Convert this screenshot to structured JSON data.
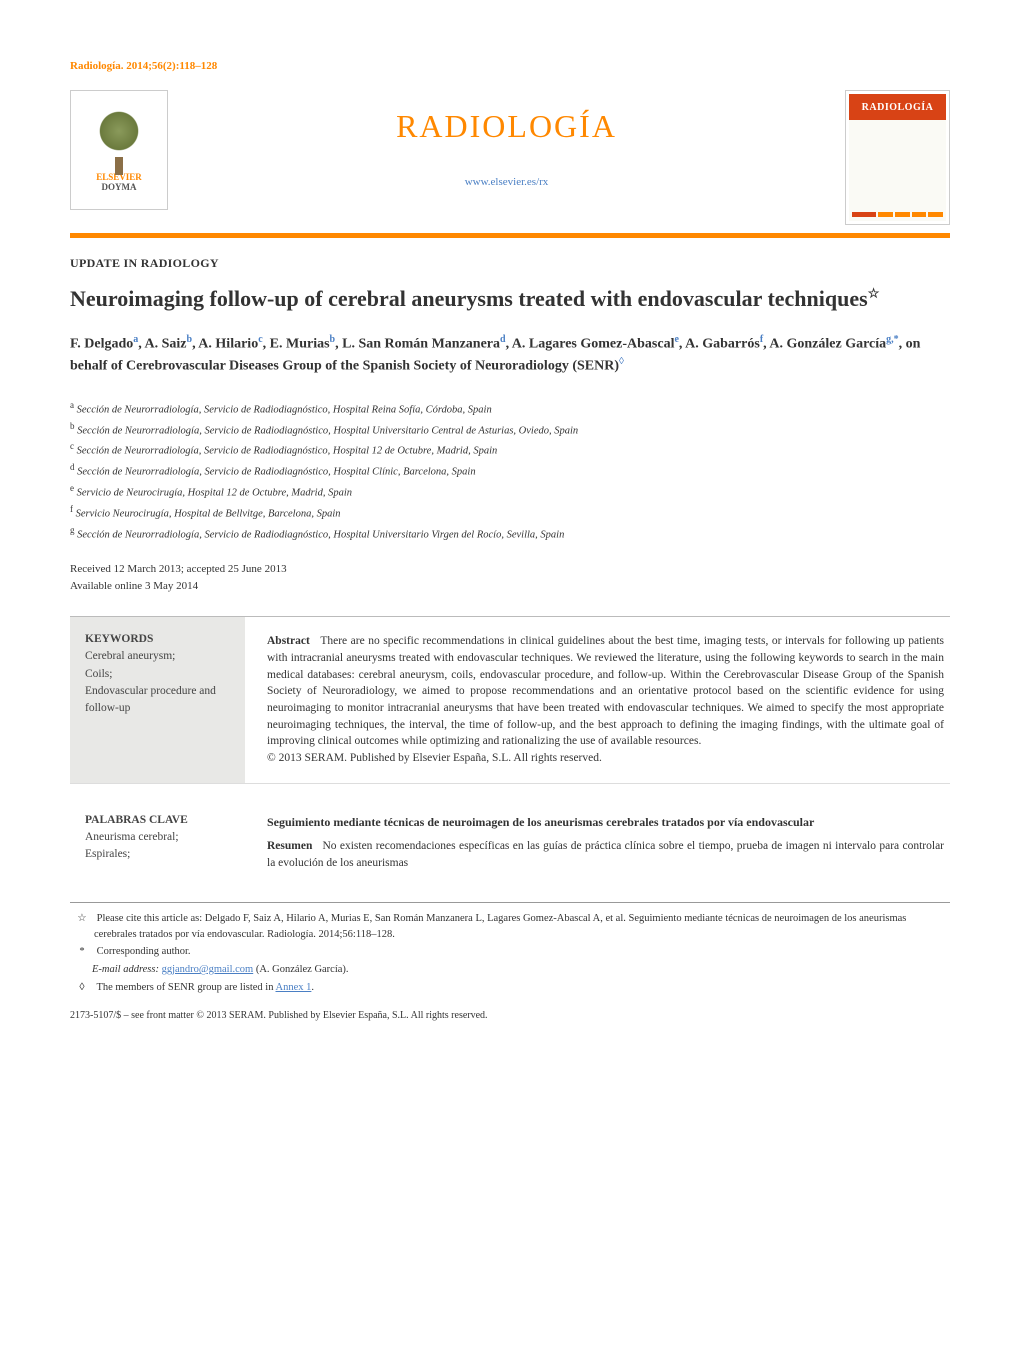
{
  "running_head": "Radiología. 2014;56(2):118–128",
  "publisher_logo": {
    "line1": "ELSEVIER",
    "line2": "DOYMA"
  },
  "journal": {
    "title": "RADIOLOGÍA",
    "url": "www.elsevier.es/rx",
    "cover_label": "RADIOLOGÍA"
  },
  "section_label": "UPDATE IN RADIOLOGY",
  "article_title": "Neuroimaging follow-up of cerebral aneurysms treated with endovascular techniques",
  "title_note_marker": "☆",
  "authors_html": "F. Delgado<sup>a</sup>, A. Saiz<sup>b</sup>, A. Hilario<sup>c</sup>, E. Murias<sup>b</sup>, L. San Román Manzanera<sup>d</sup>, A. Lagares Gomez-Abascal<sup>e</sup>, A. Gabarrós<sup>f</sup>, A. González García<sup>g,*</sup>, on behalf of Cerebrovascular Diseases Group of the Spanish Society of Neuroradiology (SENR)<sup class=\"diamond\">◊</sup>",
  "affiliations": [
    {
      "key": "a",
      "text": "Sección de Neurorradiología, Servicio de Radiodiagnóstico, Hospital Reina Sofía, Córdoba, Spain"
    },
    {
      "key": "b",
      "text": "Sección de Neurorradiología, Servicio de Radiodiagnóstico, Hospital Universitario Central de Asturias, Oviedo, Spain"
    },
    {
      "key": "c",
      "text": "Sección de Neurorradiología, Servicio de Radiodiagnóstico, Hospital 12 de Octubre, Madrid, Spain"
    },
    {
      "key": "d",
      "text": "Sección de Neurorradiología, Servicio de Radiodiagnóstico, Hospital Clínic, Barcelona, Spain"
    },
    {
      "key": "e",
      "text": "Servicio de Neurocirugía, Hospital 12 de Octubre, Madrid, Spain"
    },
    {
      "key": "f",
      "text": "Servicio Neurocirugía, Hospital de Bellvitge, Barcelona, Spain"
    },
    {
      "key": "g",
      "text": "Sección de Neurorradiología, Servicio de Radiodiagnóstico, Hospital Universitario Virgen del Rocío, Sevilla, Spain"
    }
  ],
  "dates": {
    "received_accepted": "Received 12 March 2013; accepted 25 June 2013",
    "online": "Available online 3 May 2014"
  },
  "abstract_en": {
    "kw_head": "KEYWORDS",
    "kw_list": "Cerebral aneurysm;\nCoils;\nEndovascular procedure and follow-up",
    "abs_label": "Abstract",
    "abs_text": "There are no specific recommendations in clinical guidelines about the best time, imaging tests, or intervals for following up patients with intracranial aneurysms treated with endovascular techniques. We reviewed the literature, using the following keywords to search in the main medical databases: cerebral aneurysm, coils, endovascular procedure, and follow-up. Within the Cerebrovascular Disease Group of the Spanish Society of Neuroradiology, we aimed to propose recommendations and an orientative protocol based on the scientific evidence for using neuroimaging to monitor intracranial aneurysms that have been treated with endovascular techniques. We aimed to specify the most appropriate neuroimaging techniques, the interval, the time of follow-up, and the best approach to defining the imaging findings, with the ultimate goal of improving clinical outcomes while optimizing and rationalizing the use of available resources.",
    "copyright": "© 2013 SERAM. Published by Elsevier España, S.L. All rights reserved."
  },
  "abstract_es": {
    "kw_head": "PALABRAS CLAVE",
    "kw_list": "Aneurisma cerebral;\nEspirales;",
    "subtitle": "Seguimiento mediante técnicas de neuroimagen de los aneurismas cerebrales tratados por vía endovascular",
    "abs_label": "Resumen",
    "abs_text": "No existen recomendaciones específicas en las guías de práctica clínica sobre el tiempo, prueba de imagen ni intervalo para controlar la evolución de los aneurismas"
  },
  "footnotes": {
    "cite": "Please cite this article as: Delgado F, Saiz A, Hilario A, Murias E, San Román Manzanera L, Lagares Gomez-Abascal A, et al. Seguimiento mediante técnicas de neuroimagen de los aneurismas cerebrales tratados por vía endovascular. Radiología. 2014;56:118–128.",
    "corr": "Corresponding author.",
    "email_label": "E-mail address:",
    "email": "ggjandro@gmail.com",
    "email_who": "(A. González García).",
    "senr": "The members of SENR group are listed in ",
    "senr_link": "Annex 1",
    "senr_tail": "."
  },
  "issn": "2173-5107/$ – see front matter © 2013 SERAM. Published by Elsevier España, S.L. All rights reserved.",
  "colors": {
    "accent": "#ff8800",
    "link": "#4a7fc4",
    "kw_bg": "#e8e8e6",
    "cover_red": "#d84315"
  }
}
